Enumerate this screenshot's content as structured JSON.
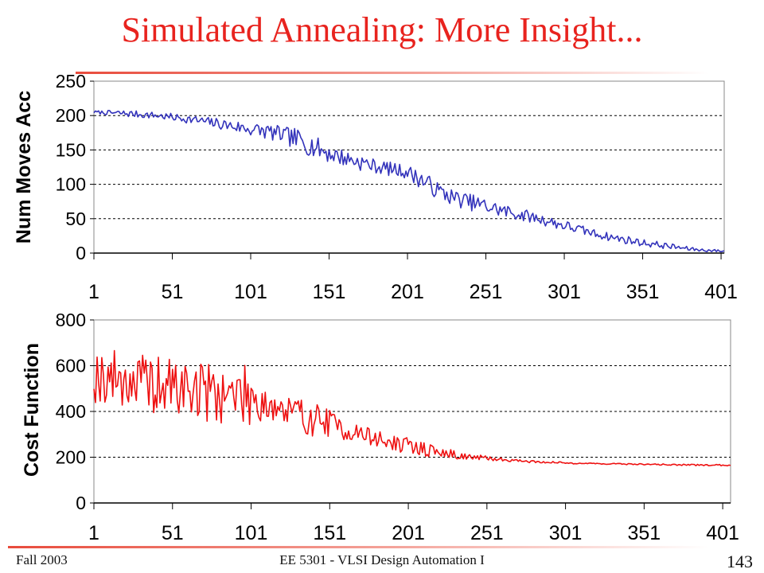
{
  "slide": {
    "title": "Simulated Annealing: More Insight...",
    "footer_left": "Fall 2003",
    "footer_center": "EE 5301 - VLSI Design Automation I",
    "page_number": "143"
  },
  "colors": {
    "title": "#e8231e",
    "series_top": "#3333bb",
    "series_bottom": "#ee1111",
    "gridline": "#000000"
  },
  "chart_data": [
    {
      "type": "line",
      "ylabel": "Num Moves Acc",
      "xlabel": "",
      "ylim": [
        0,
        250
      ],
      "yticks": [
        0,
        50,
        100,
        150,
        200,
        250
      ],
      "xlim": [
        1,
        403
      ],
      "xticks": [
        1,
        51,
        101,
        151,
        201,
        251,
        301,
        351,
        401
      ],
      "grid": "horizontal dashed",
      "series": [
        {
          "color": "#3333bb",
          "x": [
            1,
            21,
            41,
            61,
            81,
            101,
            111,
            121,
            131,
            141,
            151,
            161,
            171,
            181,
            191,
            201,
            211,
            221,
            231,
            241,
            251,
            261,
            271,
            281,
            291,
            301,
            311,
            321,
            331,
            341,
            351,
            361,
            371,
            381,
            391,
            401
          ],
          "values": [
            205,
            203,
            200,
            195,
            188,
            180,
            177,
            172,
            165,
            155,
            145,
            138,
            132,
            126,
            122,
            118,
            105,
            90,
            80,
            74,
            68,
            62,
            57,
            52,
            46,
            40,
            34,
            28,
            23,
            19,
            15,
            12,
            9,
            6,
            4,
            3
          ],
          "noise": [
            2,
            5,
            5,
            6,
            8,
            10,
            12,
            12,
            16,
            16,
            14,
            12,
            12,
            10,
            10,
            10,
            14,
            12,
            12,
            12,
            12,
            10,
            10,
            8,
            8,
            8,
            7,
            6,
            6,
            6,
            5,
            5,
            4,
            3,
            2,
            2
          ]
        }
      ]
    },
    {
      "type": "line",
      "ylabel": "Cost Function",
      "xlabel": "",
      "ylim": [
        0,
        800
      ],
      "yticks": [
        0,
        200,
        400,
        600,
        800
      ],
      "xlim": [
        1,
        406
      ],
      "xticks": [
        1,
        51,
        101,
        151,
        201,
        251,
        301,
        351,
        401
      ],
      "grid": "horizontal dashed",
      "series": [
        {
          "color": "#ee1111",
          "x": [
            1,
            21,
            41,
            61,
            81,
            101,
            111,
            121,
            131,
            141,
            151,
            161,
            171,
            181,
            191,
            201,
            211,
            221,
            231,
            241,
            251,
            261,
            271,
            281,
            291,
            301,
            321,
            341,
            361,
            381,
            406
          ],
          "values": [
            560,
            540,
            510,
            500,
            480,
            470,
            440,
            400,
            380,
            370,
            350,
            320,
            300,
            280,
            260,
            250,
            235,
            220,
            210,
            200,
            195,
            190,
            185,
            180,
            178,
            175,
            172,
            170,
            168,
            166,
            165
          ],
          "noise": [
            120,
            130,
            130,
            140,
            130,
            130,
            110,
            100,
            90,
            80,
            60,
            50,
            45,
            40,
            35,
            35,
            30,
            25,
            20,
            15,
            10,
            8,
            6,
            5,
            4,
            4,
            3,
            3,
            3,
            3,
            3
          ]
        }
      ]
    }
  ]
}
